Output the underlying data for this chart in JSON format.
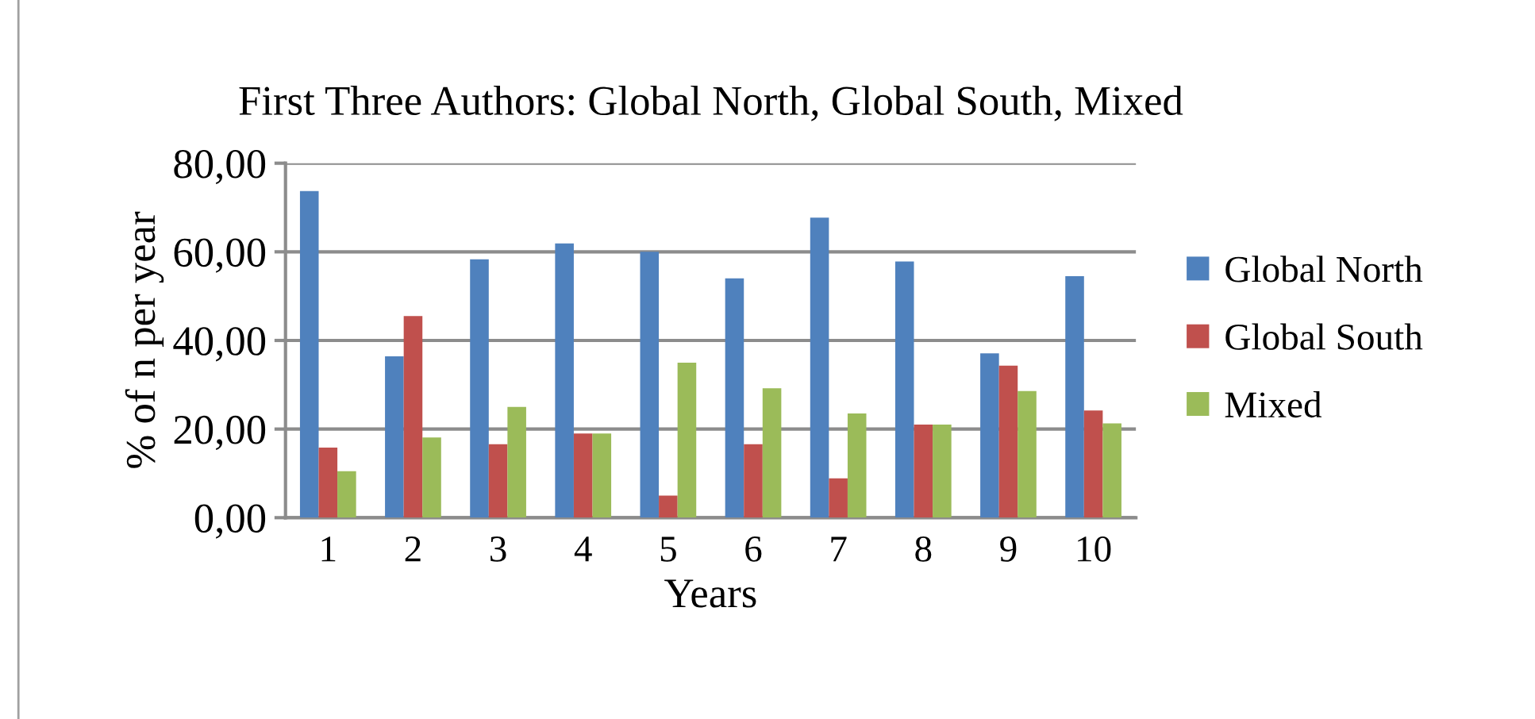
{
  "chart_data": {
    "type": "bar",
    "title": "First Three Authors: Global North, Global South, Mixed",
    "xlabel": "Years",
    "ylabel": "% of n per year",
    "categories": [
      "1",
      "2",
      "3",
      "4",
      "5",
      "6",
      "7",
      "8",
      "9",
      "10"
    ],
    "series": [
      {
        "name": "Global North",
        "color": "#4f81bd",
        "values": [
          73.7,
          36.4,
          58.3,
          61.9,
          60.0,
          54.0,
          67.7,
          57.8,
          37.1,
          54.5
        ]
      },
      {
        "name": "Global South",
        "color": "#c0504d",
        "values": [
          15.8,
          45.5,
          16.6,
          19.0,
          5.0,
          16.6,
          8.9,
          21.0,
          34.3,
          24.2
        ]
      },
      {
        "name": "Mixed",
        "color": "#9bbb59",
        "values": [
          10.5,
          18.1,
          25.0,
          19.0,
          35.0,
          29.2,
          23.5,
          21.0,
          28.6,
          21.3
        ]
      }
    ],
    "ylim": [
      0,
      80
    ],
    "yticks": [
      {
        "value": 0,
        "label": "0,00"
      },
      {
        "value": 20,
        "label": "20,00"
      },
      {
        "value": 40,
        "label": "40,00"
      },
      {
        "value": 60,
        "label": "60,00"
      },
      {
        "value": 80,
        "label": "80,00"
      }
    ],
    "grid": "y",
    "legend": "right"
  }
}
